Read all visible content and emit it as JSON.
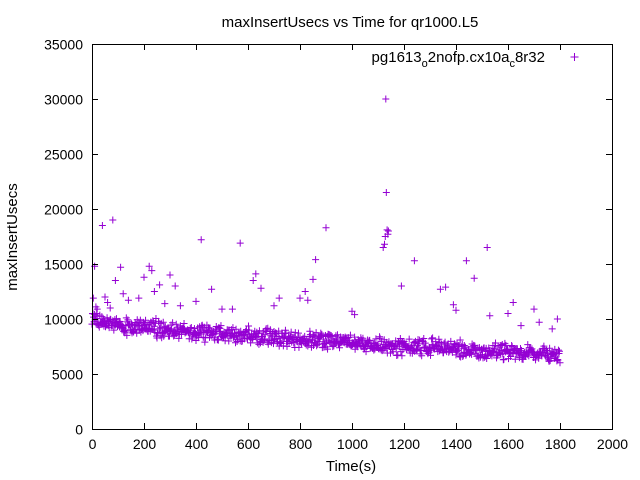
{
  "chart_data": {
    "type": "scatter",
    "title": "maxInsertUsecs vs Time for qr1000.L5",
    "xlabel": "Time(s)",
    "ylabel": "maxInsertUsecs",
    "xlim": [
      0,
      2000
    ],
    "ylim": [
      0,
      35000
    ],
    "x_ticks": [
      0,
      200,
      400,
      600,
      800,
      1000,
      1200,
      1400,
      1600,
      1800,
      2000
    ],
    "y_ticks": [
      0,
      5000,
      10000,
      15000,
      20000,
      25000,
      30000,
      35000
    ],
    "grid": false,
    "legend_position": "top-right",
    "marker": "plus",
    "point_color": "#9400d3",
    "series": [
      {
        "name": "pg1613_o2nofp.cx10a_c8r32",
        "name_parts": [
          "pg1613",
          "o",
          "2nofp.cx10a",
          "c",
          "8r32"
        ],
        "baseline": [
          [
            0,
            9800
          ],
          [
            100,
            9400
          ],
          [
            200,
            9300
          ],
          [
            300,
            9000
          ],
          [
            400,
            8800
          ],
          [
            500,
            8600
          ],
          [
            600,
            8500
          ],
          [
            700,
            8300
          ],
          [
            800,
            8100
          ],
          [
            900,
            8000
          ],
          [
            1000,
            7800
          ],
          [
            1100,
            7600
          ],
          [
            1200,
            7400
          ],
          [
            1300,
            7400
          ],
          [
            1400,
            7300
          ],
          [
            1500,
            7100
          ],
          [
            1600,
            7000
          ],
          [
            1700,
            6900
          ],
          [
            1800,
            6700
          ]
        ],
        "band": 900,
        "interval_s": 2,
        "duration_s": 1800,
        "outliers": [
          [
            5,
            11900
          ],
          [
            10,
            14800
          ],
          [
            15,
            11100
          ],
          [
            20,
            10900
          ],
          [
            40,
            18500
          ],
          [
            50,
            12000
          ],
          [
            60,
            11500
          ],
          [
            70,
            11000
          ],
          [
            80,
            19000
          ],
          [
            90,
            13500
          ],
          [
            110,
            14700
          ],
          [
            120,
            12300
          ],
          [
            140,
            11700
          ],
          [
            180,
            11900
          ],
          [
            200,
            13800
          ],
          [
            220,
            14800
          ],
          [
            230,
            14400
          ],
          [
            240,
            12500
          ],
          [
            260,
            13100
          ],
          [
            280,
            11400
          ],
          [
            300,
            14000
          ],
          [
            320,
            13000
          ],
          [
            340,
            11200
          ],
          [
            400,
            11600
          ],
          [
            420,
            17200
          ],
          [
            460,
            12700
          ],
          [
            500,
            10900
          ],
          [
            540,
            10900
          ],
          [
            570,
            16900
          ],
          [
            620,
            13500
          ],
          [
            630,
            14100
          ],
          [
            650,
            12800
          ],
          [
            700,
            11200
          ],
          [
            720,
            11900
          ],
          [
            800,
            11900
          ],
          [
            820,
            12500
          ],
          [
            830,
            11700
          ],
          [
            850,
            13600
          ],
          [
            860,
            15400
          ],
          [
            900,
            18300
          ],
          [
            1000,
            10700
          ],
          [
            1010,
            10400
          ],
          [
            1120,
            16500
          ],
          [
            1125,
            16800
          ],
          [
            1128,
            17500
          ],
          [
            1130,
            30000
          ],
          [
            1132,
            21500
          ],
          [
            1135,
            18100
          ],
          [
            1138,
            17700
          ],
          [
            1140,
            18000
          ],
          [
            1190,
            13000
          ],
          [
            1240,
            15300
          ],
          [
            1340,
            12700
          ],
          [
            1360,
            12900
          ],
          [
            1390,
            11300
          ],
          [
            1400,
            10800
          ],
          [
            1440,
            15300
          ],
          [
            1470,
            13700
          ],
          [
            1520,
            16500
          ],
          [
            1530,
            10300
          ],
          [
            1600,
            10500
          ],
          [
            1620,
            11500
          ],
          [
            1650,
            9400
          ],
          [
            1700,
            10900
          ],
          [
            1720,
            9700
          ],
          [
            1770,
            9100
          ],
          [
            1790,
            10000
          ]
        ]
      }
    ]
  }
}
